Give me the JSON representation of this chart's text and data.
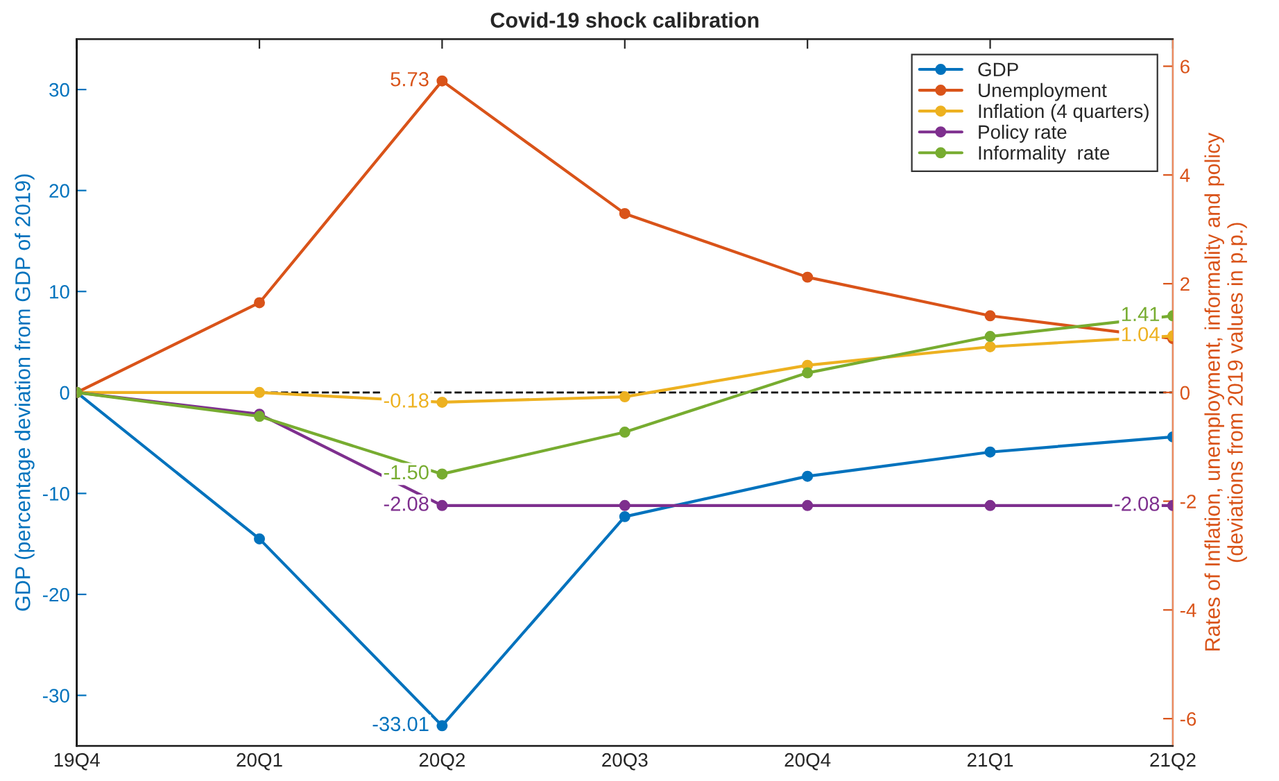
{
  "chart_data": {
    "type": "line",
    "title": "Covid-19 shock calibration",
    "ylabel": "GDP (percentage deviation from GDP of 2019)",
    "y2label": "Rates of Inflation, unemployment, informality and policy\n(deviations from 2019 values in p.p.)",
    "categories": [
      "19Q4",
      "20Q1",
      "20Q2",
      "20Q3",
      "20Q4",
      "21Q1",
      "21Q2"
    ],
    "ylim": [
      -35,
      35
    ],
    "yticks": [
      -30,
      -20,
      -10,
      0,
      10,
      20,
      30
    ],
    "y2lim": [
      -6.5,
      6.5
    ],
    "y2ticks": [
      -6,
      -4,
      -2,
      0,
      2,
      4,
      6
    ],
    "series": [
      {
        "name": "GDP",
        "color": "#0072bd",
        "values": [
          0,
          -14.5,
          -33.01,
          -12.3,
          -8.3,
          -5.9,
          -4.4
        ],
        "value_labels": [
          null,
          null,
          "-33.01",
          null,
          null,
          null,
          null
        ]
      },
      {
        "name": "Unemployment",
        "color": "#d95319",
        "axis": "y2",
        "values": [
          0,
          1.65,
          5.73,
          3.29,
          2.12,
          1.41,
          0.99
        ],
        "value_labels": [
          null,
          null,
          "5.73",
          null,
          null,
          null,
          null
        ]
      },
      {
        "name": "Inflation (4 quarters)",
        "color": "#edb120",
        "axis": "y2",
        "values": [
          0,
          0,
          -0.18,
          -0.08,
          0.5,
          0.84,
          1.04
        ],
        "value_labels": [
          null,
          null,
          "-0.18",
          null,
          null,
          null,
          "1.04"
        ]
      },
      {
        "name": "Policy rate",
        "color": "#7e2f8e",
        "axis": "y2",
        "values": [
          0,
          -0.4,
          -2.08,
          -2.08,
          -2.08,
          -2.08,
          -2.08
        ],
        "value_labels": [
          null,
          null,
          "-2.08",
          null,
          null,
          null,
          "-2.08"
        ]
      },
      {
        "name": "Informality  rate",
        "color": "#77ac30",
        "axis": "y2",
        "values": [
          0,
          -0.44,
          -1.5,
          -0.73,
          0.36,
          1.03,
          1.41
        ],
        "value_labels": [
          null,
          null,
          "-1.50",
          null,
          null,
          null,
          "1.41"
        ]
      }
    ],
    "ref_lines": [
      {
        "axis": "y",
        "value": 0,
        "color": "#000000",
        "line_style": "dashed"
      }
    ],
    "legend": "top right",
    "marker": "circle",
    "line_style": "solid",
    "grid": false
  }
}
